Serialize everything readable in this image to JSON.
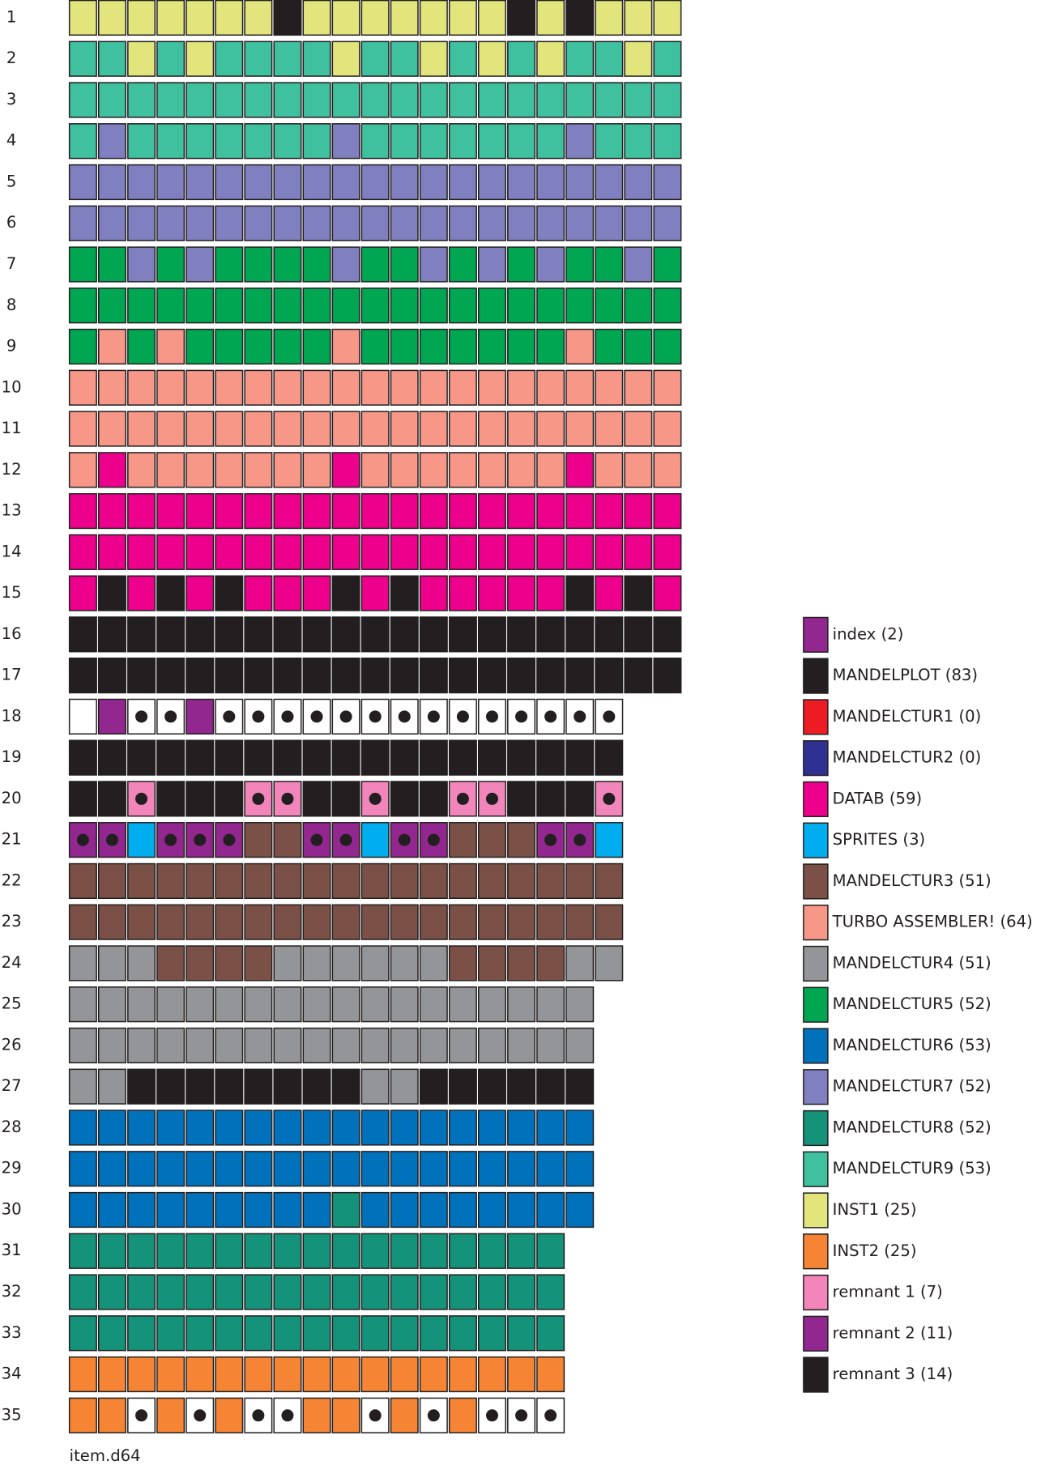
{
  "legend": [
    {
      "label": "index (2)",
      "color": "#92278f"
    },
    {
      "label": "MANDELPLOT (83)",
      "color": "#231f20"
    },
    {
      "label": "MANDELCTUR1 (0)",
      "color": "#ed1c24"
    },
    {
      "label": "MANDELCTUR2 (0)",
      "color": "#2e3192"
    },
    {
      "label": "DATAB (59)",
      "color": "#ec008c"
    },
    {
      "label": "SPRITES (3)",
      "color": "#00aeef"
    },
    {
      "label": "MANDELCTUR3 (51)",
      "color": "#7b5147"
    },
    {
      "label": "TURBO ASSEMBLER! (64)",
      "color": "#f69788"
    },
    {
      "label": "MANDELCTUR4 (51)",
      "color": "#939598"
    },
    {
      "label": "MANDELCTUR5 (52)",
      "color": "#00a651"
    },
    {
      "label": "MANDELCTUR6 (53)",
      "color": "#0072bc"
    },
    {
      "label": "MANDELCTUR7 (52)",
      "color": "#8080c0"
    },
    {
      "label": "MANDELCTUR8 (52)",
      "color": "#14937a"
    },
    {
      "label": "MANDELCTUR9 (53)",
      "color": "#3fc09f"
    },
    {
      "label": "INST1 (25)",
      "color": "#e1e57b"
    },
    {
      "label": "INST2 (25)",
      "color": "#f58535"
    },
    {
      "label": "remnant 1 (7)",
      "color": "#f286bb"
    },
    {
      "label": "remnant 2 (11)",
      "color": "#92278f"
    },
    {
      "label": "remnant 3 (14)",
      "color": "#231f20"
    }
  ],
  "tracks": [
    {
      "label": "1",
      "cells": [
        14,
        14,
        14,
        14,
        14,
        14,
        14,
        1,
        14,
        14,
        14,
        14,
        14,
        14,
        14,
        1,
        14,
        1,
        14,
        14,
        14
      ],
      "dots": []
    },
    {
      "label": "2",
      "cells": [
        13,
        13,
        14,
        13,
        14,
        13,
        13,
        13,
        13,
        14,
        13,
        13,
        14,
        13,
        14,
        13,
        14,
        13,
        13,
        14,
        13
      ],
      "dots": []
    },
    {
      "label": "3",
      "cells": [
        13,
        13,
        13,
        13,
        13,
        13,
        13,
        13,
        13,
        13,
        13,
        13,
        13,
        13,
        13,
        13,
        13,
        13,
        13,
        13,
        13
      ],
      "dots": []
    },
    {
      "label": "4",
      "cells": [
        13,
        11,
        13,
        13,
        13,
        13,
        13,
        13,
        13,
        11,
        13,
        13,
        13,
        13,
        13,
        13,
        13,
        11,
        13,
        13,
        13
      ],
      "dots": []
    },
    {
      "label": "5",
      "cells": [
        11,
        11,
        11,
        11,
        11,
        11,
        11,
        11,
        11,
        11,
        11,
        11,
        11,
        11,
        11,
        11,
        11,
        11,
        11,
        11,
        11
      ],
      "dots": []
    },
    {
      "label": "6",
      "cells": [
        11,
        11,
        11,
        11,
        11,
        11,
        11,
        11,
        11,
        11,
        11,
        11,
        11,
        11,
        11,
        11,
        11,
        11,
        11,
        11,
        11
      ],
      "dots": []
    },
    {
      "label": "7",
      "cells": [
        9,
        9,
        11,
        9,
        11,
        9,
        9,
        9,
        9,
        11,
        9,
        9,
        11,
        9,
        11,
        9,
        11,
        9,
        9,
        11,
        9
      ],
      "dots": []
    },
    {
      "label": "8",
      "cells": [
        9,
        9,
        9,
        9,
        9,
        9,
        9,
        9,
        9,
        9,
        9,
        9,
        9,
        9,
        9,
        9,
        9,
        9,
        9,
        9,
        9
      ],
      "dots": []
    },
    {
      "label": "9",
      "cells": [
        9,
        7,
        9,
        7,
        9,
        9,
        9,
        9,
        9,
        7,
        9,
        9,
        9,
        9,
        9,
        9,
        9,
        7,
        9,
        9,
        9
      ],
      "dots": []
    },
    {
      "label": "10",
      "cells": [
        7,
        7,
        7,
        7,
        7,
        7,
        7,
        7,
        7,
        7,
        7,
        7,
        7,
        7,
        7,
        7,
        7,
        7,
        7,
        7,
        7
      ],
      "dots": []
    },
    {
      "label": "11",
      "cells": [
        7,
        7,
        7,
        7,
        7,
        7,
        7,
        7,
        7,
        7,
        7,
        7,
        7,
        7,
        7,
        7,
        7,
        7,
        7,
        7,
        7
      ],
      "dots": []
    },
    {
      "label": "12",
      "cells": [
        7,
        4,
        7,
        7,
        7,
        7,
        7,
        7,
        7,
        4,
        7,
        7,
        7,
        7,
        7,
        7,
        7,
        4,
        7,
        7,
        7
      ],
      "dots": []
    },
    {
      "label": "13",
      "cells": [
        4,
        4,
        4,
        4,
        4,
        4,
        4,
        4,
        4,
        4,
        4,
        4,
        4,
        4,
        4,
        4,
        4,
        4,
        4,
        4,
        4
      ],
      "dots": []
    },
    {
      "label": "14",
      "cells": [
        4,
        4,
        4,
        4,
        4,
        4,
        4,
        4,
        4,
        4,
        4,
        4,
        4,
        4,
        4,
        4,
        4,
        4,
        4,
        4,
        4
      ],
      "dots": []
    },
    {
      "label": "15",
      "cells": [
        4,
        1,
        4,
        1,
        4,
        1,
        4,
        4,
        4,
        1,
        4,
        1,
        4,
        4,
        4,
        4,
        4,
        1,
        4,
        1,
        4
      ],
      "dots": []
    },
    {
      "label": "16",
      "cells": [
        1,
        1,
        1,
        1,
        1,
        1,
        1,
        1,
        1,
        1,
        1,
        1,
        1,
        1,
        1,
        1,
        1,
        1,
        1,
        1,
        1
      ],
      "dots": []
    },
    {
      "label": "17",
      "cells": [
        1,
        1,
        1,
        1,
        1,
        1,
        1,
        1,
        1,
        1,
        1,
        1,
        1,
        1,
        1,
        1,
        1,
        1,
        1,
        1,
        1
      ],
      "dots": []
    },
    {
      "label": "18",
      "cells": [
        null,
        0,
        null,
        null,
        0,
        null,
        null,
        null,
        null,
        null,
        null,
        null,
        null,
        null,
        null,
        null,
        null,
        null,
        null
      ],
      "dots": [
        2,
        3,
        5,
        6,
        7,
        8,
        9,
        10,
        11,
        12,
        13,
        14,
        15,
        16,
        17,
        18
      ]
    },
    {
      "label": "19",
      "cells": [
        1,
        1,
        1,
        1,
        1,
        1,
        1,
        1,
        1,
        1,
        1,
        1,
        1,
        1,
        1,
        1,
        1,
        1,
        1
      ],
      "dots": []
    },
    {
      "label": "20",
      "cells": [
        1,
        1,
        16,
        1,
        1,
        1,
        16,
        16,
        1,
        1,
        16,
        1,
        1,
        16,
        16,
        1,
        1,
        1,
        16
      ],
      "dots": [
        2,
        6,
        7,
        10,
        13,
        14,
        18
      ]
    },
    {
      "label": "21",
      "cells": [
        17,
        17,
        5,
        17,
        17,
        17,
        6,
        6,
        17,
        17,
        5,
        17,
        17,
        6,
        6,
        6,
        17,
        17,
        5
      ],
      "dots": [
        0,
        1,
        3,
        4,
        5,
        8,
        9,
        11,
        12,
        16,
        17
      ]
    },
    {
      "label": "22",
      "cells": [
        6,
        6,
        6,
        6,
        6,
        6,
        6,
        6,
        6,
        6,
        6,
        6,
        6,
        6,
        6,
        6,
        6,
        6,
        6
      ],
      "dots": []
    },
    {
      "label": "23",
      "cells": [
        6,
        6,
        6,
        6,
        6,
        6,
        6,
        6,
        6,
        6,
        6,
        6,
        6,
        6,
        6,
        6,
        6,
        6,
        6
      ],
      "dots": []
    },
    {
      "label": "24",
      "cells": [
        8,
        8,
        8,
        6,
        6,
        6,
        6,
        8,
        8,
        8,
        8,
        8,
        8,
        6,
        6,
        6,
        6,
        8,
        8
      ],
      "dots": []
    },
    {
      "label": "25",
      "cells": [
        8,
        8,
        8,
        8,
        8,
        8,
        8,
        8,
        8,
        8,
        8,
        8,
        8,
        8,
        8,
        8,
        8,
        8
      ],
      "dots": []
    },
    {
      "label": "26",
      "cells": [
        8,
        8,
        8,
        8,
        8,
        8,
        8,
        8,
        8,
        8,
        8,
        8,
        8,
        8,
        8,
        8,
        8,
        8
      ],
      "dots": []
    },
    {
      "label": "27",
      "cells": [
        8,
        8,
        18,
        18,
        18,
        18,
        18,
        18,
        18,
        18,
        8,
        8,
        18,
        18,
        18,
        18,
        18,
        18
      ],
      "dots": []
    },
    {
      "label": "28",
      "cells": [
        10,
        10,
        10,
        10,
        10,
        10,
        10,
        10,
        10,
        10,
        10,
        10,
        10,
        10,
        10,
        10,
        10,
        10
      ],
      "dots": []
    },
    {
      "label": "29",
      "cells": [
        10,
        10,
        10,
        10,
        10,
        10,
        10,
        10,
        10,
        10,
        10,
        10,
        10,
        10,
        10,
        10,
        10,
        10
      ],
      "dots": []
    },
    {
      "label": "30",
      "cells": [
        10,
        10,
        10,
        10,
        10,
        10,
        10,
        10,
        10,
        12,
        10,
        10,
        10,
        10,
        10,
        10,
        10,
        10
      ],
      "dots": []
    },
    {
      "label": "31",
      "cells": [
        12,
        12,
        12,
        12,
        12,
        12,
        12,
        12,
        12,
        12,
        12,
        12,
        12,
        12,
        12,
        12,
        12
      ],
      "dots": []
    },
    {
      "label": "32",
      "cells": [
        12,
        12,
        12,
        12,
        12,
        12,
        12,
        12,
        12,
        12,
        12,
        12,
        12,
        12,
        12,
        12,
        12
      ],
      "dots": []
    },
    {
      "label": "33",
      "cells": [
        12,
        12,
        12,
        12,
        12,
        12,
        12,
        12,
        12,
        12,
        12,
        12,
        12,
        12,
        12,
        12,
        12
      ],
      "dots": []
    },
    {
      "label": "34",
      "cells": [
        15,
        15,
        15,
        15,
        15,
        15,
        15,
        15,
        15,
        15,
        15,
        15,
        15,
        15,
        15,
        15,
        15
      ],
      "dots": []
    },
    {
      "label": "35",
      "cells": [
        15,
        15,
        null,
        15,
        null,
        15,
        null,
        null,
        15,
        15,
        null,
        15,
        null,
        15,
        null,
        null,
        null
      ],
      "dots": [
        2,
        4,
        6,
        7,
        10,
        12,
        14,
        15,
        16
      ]
    }
  ],
  "footer": "item.d64"
}
